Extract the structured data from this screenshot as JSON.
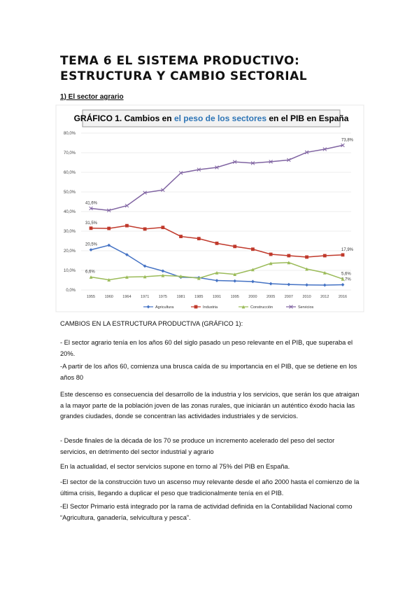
{
  "header": {
    "title": "TEMA 6 EL SISTEMA PRODUCTIVO: ESTRUCTURA Y CAMBIO SECTORIAL",
    "subtitle": "1) El sector agrario"
  },
  "chart_data": {
    "type": "line",
    "title_parts": [
      "GRÁFICO 1. Cambios en",
      "el peso de los sectores",
      "en el PIB en España"
    ],
    "title_highlight_color": "#2e75b6",
    "categories": [
      "1955",
      "1960",
      "1964",
      "1971",
      "1975",
      "1981",
      "1985",
      "1991",
      "1995",
      "2000",
      "2005",
      "2007",
      "2010",
      "2012",
      "2016"
    ],
    "ylim": [
      0,
      80
    ],
    "yticks": [
      {
        "value": 0,
        "label": "0,0%"
      },
      {
        "value": 10,
        "label": "10,0%"
      },
      {
        "value": 20,
        "label": "20,0%"
      },
      {
        "value": 30,
        "label": "30,0%"
      },
      {
        "value": 40,
        "label": "40,0%"
      },
      {
        "value": 50,
        "label": "50,0%"
      },
      {
        "value": 60,
        "label": "60,0%"
      },
      {
        "value": 70,
        "label": "70,0%"
      },
      {
        "value": 80,
        "label": "80,0%"
      }
    ],
    "grid": true,
    "legend": "bottom",
    "series": [
      {
        "name": "Agricultura",
        "color": "#4472c4",
        "marker": "diamond",
        "values": [
          20.5,
          22.8,
          18,
          12.2,
          9.7,
          6.5,
          6.3,
          4.8,
          4.6,
          4.3,
          3.2,
          2.8,
          2.6,
          2.5,
          2.7
        ],
        "value_labels": [
          "20,5%",
          null,
          null,
          null,
          null,
          null,
          null,
          null,
          null,
          null,
          null,
          null,
          null,
          null,
          "2,7%"
        ]
      },
      {
        "name": "Industria",
        "color": "#c0392b",
        "marker": "square",
        "values": [
          31.5,
          31.4,
          32.8,
          31.1,
          31.9,
          27.3,
          26.2,
          23.8,
          22.2,
          20.8,
          18.2,
          17.5,
          16.8,
          17.5,
          17.9
        ],
        "value_labels": [
          "31,5%",
          null,
          null,
          null,
          null,
          null,
          null,
          null,
          null,
          null,
          null,
          null,
          null,
          null,
          "17,9%"
        ]
      },
      {
        "name": "Construcción",
        "color": "#9bbb59",
        "marker": "triangle",
        "values": [
          6.6,
          5.2,
          6.6,
          6.8,
          7.4,
          7.0,
          6.0,
          8.8,
          8.0,
          10.4,
          13.6,
          14.0,
          10.7,
          8.8,
          5.6
        ],
        "value_labels": [
          "6,6%",
          null,
          null,
          null,
          null,
          null,
          null,
          null,
          null,
          null,
          null,
          null,
          null,
          null,
          "5,6%"
        ]
      },
      {
        "name": "Servicios",
        "color": "#8064a2",
        "marker": "cross",
        "values": [
          41.6,
          40.6,
          43,
          49.6,
          51,
          59.7,
          61.4,
          62.5,
          65.3,
          64.7,
          65.4,
          66.3,
          70.2,
          71.8,
          73.8
        ],
        "value_labels": [
          "41,6%",
          null,
          null,
          null,
          null,
          null,
          null,
          null,
          null,
          null,
          null,
          null,
          null,
          null,
          "73,8%"
        ]
      }
    ]
  },
  "body": {
    "section_title": "CAMBIOS EN LA ESTRUCTURA PRODUCTIVA (GRÁFICO 1):",
    "paragraphs": [
      "- El sector agrario tenía en los años 60 del siglo pasado un peso relevante en el PIB, que superaba el 20%.",
      "-A partir de los años 60, comienza una brusca caída de su importancia en el PIB, que se detiene en los años 80",
      "Este descenso es consecuencia del desarrollo de la industria y los servicios, que serán los que atraigan a la mayor parte de la población joven de las zonas rurales, que iniciarán un auténtico éxodo hacia las grandes ciudades, donde se concentran las actividades industriales y de servicios.",
      "- Desde finales de la década de los 70 se produce un incremento acelerado del peso del sector servicios, en detrimento del sector industrial y agrario",
      " En la actualidad, el sector servicios supone en torno al 75% del PIB en España.",
      "-El sector de la construcción tuvo un ascenso muy relevante desde el año 2000 hasta el comienzo de la última crisis, llegando a duplicar el peso que tradicionalmente tenía en el PIB.",
      "-El Sector Primario está integrado por la rama de actividad definida en la Contabilidad Nacional como “Agricultura, ganadería, selvicultura y pesca”."
    ]
  }
}
